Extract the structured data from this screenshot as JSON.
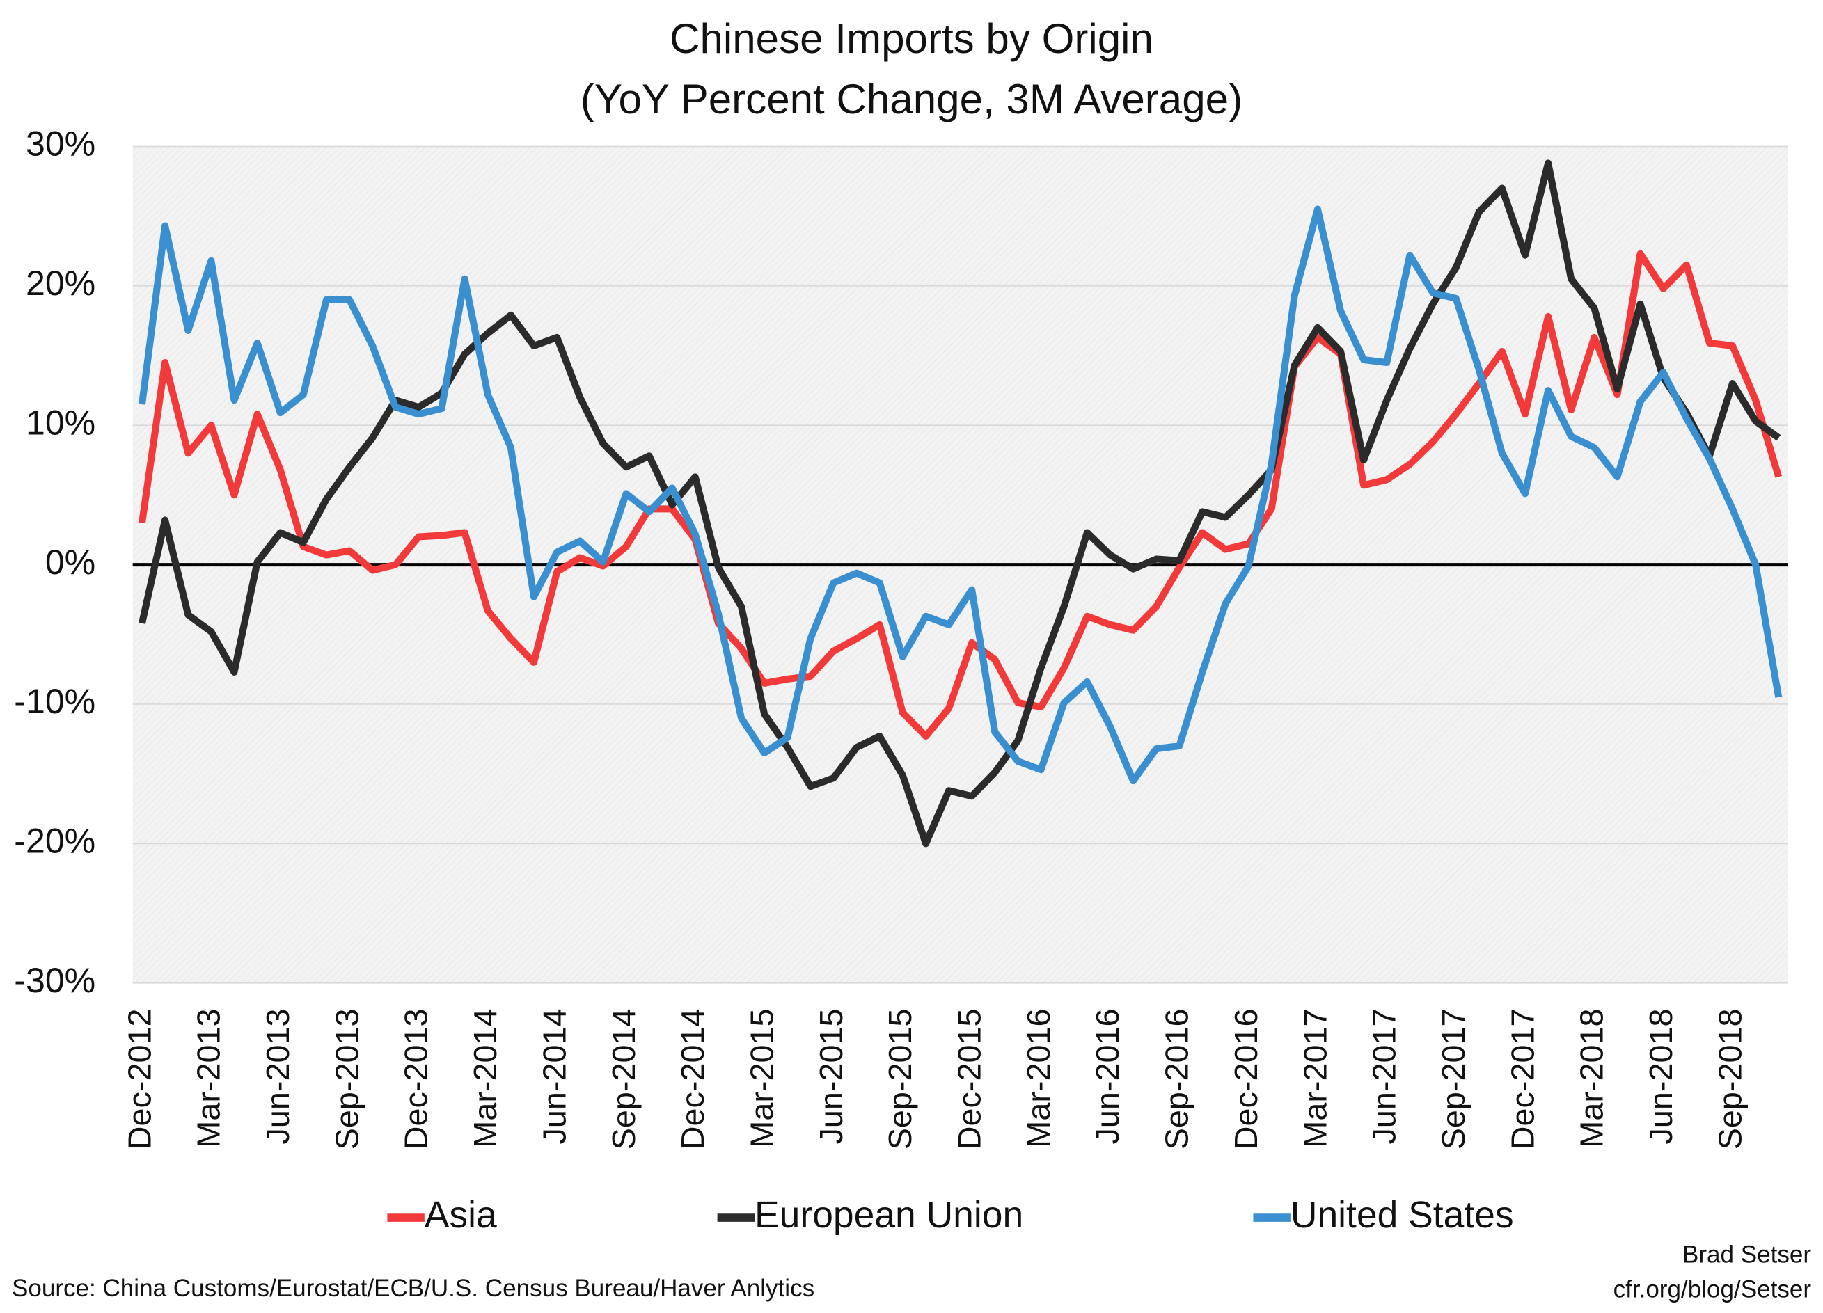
{
  "chart_data": {
    "type": "line",
    "title": "Chinese Imports by Origin",
    "subtitle": "(YoY Percent Change, 3M Average)",
    "categories": [
      "Dec-2012",
      null,
      null,
      "Mar-2013",
      null,
      null,
      "Jun-2013",
      null,
      null,
      "Sep-2013",
      null,
      null,
      "Dec-2013",
      null,
      null,
      "Mar-2014",
      null,
      null,
      "Jun-2014",
      null,
      null,
      "Sep-2014",
      null,
      null,
      "Dec-2014",
      null,
      null,
      "Mar-2015",
      null,
      null,
      "Jun-2015",
      null,
      null,
      "Sep-2015",
      null,
      null,
      "Dec-2015",
      null,
      null,
      "Mar-2016",
      null,
      null,
      "Jun-2016",
      null,
      null,
      "Sep-2016",
      null,
      null,
      "Dec-2016",
      null,
      null,
      "Mar-2017",
      null,
      null,
      "Jun-2017",
      null,
      null,
      "Sep-2017",
      null,
      null,
      "Dec-2017",
      null,
      null,
      "Mar-2018",
      null,
      null,
      "Jun-2018",
      null,
      null,
      "Sep-2018",
      null,
      null
    ],
    "series": [
      {
        "name": "Asia",
        "color": "#f23a3a",
        "values": [
          3,
          14.5,
          8,
          10,
          5,
          10.8,
          6.8,
          1.3,
          0.7,
          1,
          -0.4,
          0,
          2,
          2.1,
          2.3,
          -3.3,
          -5.3,
          -7,
          -0.5,
          0.5,
          -0.1,
          1.3,
          4,
          4,
          1.8,
          -4.2,
          -6,
          -8.5,
          -8.2,
          -8,
          -6.2,
          -5.3,
          -4.3,
          -10.6,
          -12.3,
          -10.3,
          -5.6,
          -6.8,
          -9.9,
          -10.2,
          -7.4,
          -3.7,
          -4.3,
          -4.7,
          -3,
          -0.2,
          2.3,
          1.1,
          1.5,
          4,
          14.2,
          16.3,
          15.1,
          5.7,
          6.1,
          7.2,
          8.8,
          10.8,
          13,
          15.3,
          10.8,
          17.8,
          11.1,
          16.3,
          12.2,
          22.3,
          19.8,
          21.5,
          15.9,
          15.7,
          11.8,
          6.3
        ]
      },
      {
        "name": "European Union",
        "color": "#2b2b2b",
        "values": [
          -4.2,
          3.2,
          -3.6,
          -4.8,
          -7.7,
          0.2,
          2.3,
          1.6,
          4.7,
          7,
          9.1,
          11.8,
          11.3,
          12.3,
          15.1,
          16.6,
          17.9,
          15.7,
          16.3,
          12,
          8.7,
          7,
          7.8,
          4.3,
          6.3,
          -0.2,
          -3,
          -10.7,
          -13.1,
          -15.9,
          -15.3,
          -13.1,
          -12.3,
          -15.1,
          -20,
          -16.2,
          -16.6,
          -14.9,
          -12.6,
          -7.4,
          -3,
          2.3,
          0.7,
          -0.3,
          0.4,
          0.3,
          3.8,
          3.4,
          5,
          6.8,
          14.3,
          17,
          15.3,
          7.5,
          11.8,
          15.5,
          18.7,
          21.3,
          25.3,
          27,
          22.2,
          28.8,
          20.5,
          18.4,
          12.6,
          18.7,
          13.4,
          10.9,
          7.8,
          13,
          10.3,
          9.1
        ]
      },
      {
        "name": "United States",
        "color": "#3a8fd0",
        "values": [
          11.5,
          24.3,
          16.8,
          21.8,
          11.8,
          15.9,
          10.9,
          12.2,
          19,
          19,
          15.7,
          11.3,
          10.8,
          11.2,
          20.5,
          12.2,
          8.4,
          -2.3,
          0.9,
          1.7,
          0.2,
          5.1,
          3.8,
          5.5,
          2.2,
          -3.5,
          -11,
          -13.5,
          -12.4,
          -5.3,
          -1.3,
          -0.6,
          -1.3,
          -6.6,
          -3.7,
          -4.3,
          -1.8,
          -12,
          -14.1,
          -14.7,
          -9.9,
          -8.4,
          -11.6,
          -15.5,
          -13.2,
          -13,
          -7.7,
          -2.8,
          -0.1,
          7.2,
          19.3,
          25.5,
          18.2,
          14.7,
          14.5,
          22.2,
          19.5,
          19.1,
          14,
          8,
          5.1,
          12.5,
          9.2,
          8.4,
          6.3,
          11.7,
          13.8,
          10.5,
          7.6,
          4,
          0,
          -9.5
        ]
      }
    ],
    "ylim": [
      -30,
      30
    ],
    "yticks": [
      {
        "value": -30,
        "label": "-30%"
      },
      {
        "value": -20,
        "label": "-20%"
      },
      {
        "value": -10,
        "label": "-10%"
      },
      {
        "value": 0,
        "label": "0%"
      },
      {
        "value": 10,
        "label": "10%"
      },
      {
        "value": 20,
        "label": "20%"
      },
      {
        "value": 30,
        "label": "30%"
      }
    ],
    "grid": true,
    "legend": "bottom",
    "source": "Source: China Customs/Eurostat/ECB/U.S. Census Bureau/Haver Anlytics",
    "credit": [
      "Brad Setser",
      "cfr.org/blog/Setser"
    ]
  }
}
